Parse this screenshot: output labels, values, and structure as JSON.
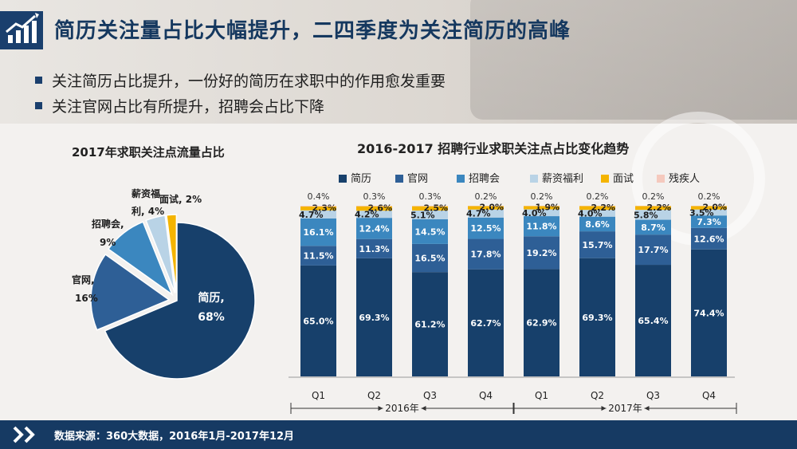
{
  "header": {
    "title": "简历关注量占比大幅提升，二四季度为关注简历的高峰",
    "bullets": [
      "关注简历占比提升，一份好的简历在求职中的作用愈发重要",
      "关注官网占比有所提升，招聘会占比下降"
    ]
  },
  "footer": {
    "source": "数据来源：360大数据，2016年1月-2017年12月"
  },
  "colors": {
    "navy": "#163a63",
    "jianli": "#17406b",
    "guanwang": "#2e5f96",
    "zhaopinhui": "#3b87bf",
    "xinzi": "#b9d3e6",
    "mianshi": "#f4b400",
    "canji": "#f5c9bd"
  },
  "chart_data": [
    {
      "type": "pie",
      "title": "2017年求职关注点流量占比",
      "slices": [
        {
          "label": "简历",
          "value": 68,
          "display": "68%",
          "color": "#17406b"
        },
        {
          "label": "官网",
          "value": 16,
          "display": "16%",
          "color": "#2e5f96"
        },
        {
          "label": "招聘会",
          "value": 9,
          "display": "9%",
          "color": "#3b87bf"
        },
        {
          "label": "薪资福利",
          "value": 4,
          "display": "4%",
          "color": "#b9d3e6"
        },
        {
          "label": "面试",
          "value": 2,
          "display": "2%",
          "color": "#f4b400"
        }
      ]
    },
    {
      "type": "bar",
      "stacked": true,
      "title": "2016-2017 招聘行业求职关注点占比变化趋势",
      "categories": [
        "Q1",
        "Q2",
        "Q3",
        "Q4",
        "Q1",
        "Q2",
        "Q3",
        "Q4"
      ],
      "groups": [
        {
          "label": "2016年",
          "span": [
            0,
            3
          ]
        },
        {
          "label": "2017年",
          "span": [
            4,
            7
          ]
        }
      ],
      "legend_position": "top",
      "series": [
        {
          "name": "简历",
          "color": "#17406b",
          "values": [
            65.0,
            69.3,
            61.2,
            62.7,
            62.9,
            69.3,
            65.4,
            74.4
          ]
        },
        {
          "name": "官网",
          "color": "#2e5f96",
          "values": [
            11.5,
            11.3,
            16.5,
            17.8,
            19.2,
            15.7,
            17.7,
            12.6
          ]
        },
        {
          "name": "招聘会",
          "color": "#3b87bf",
          "values": [
            16.1,
            12.4,
            14.5,
            12.5,
            11.8,
            8.6,
            8.7,
            7.3
          ]
        },
        {
          "name": "薪资福利",
          "color": "#b9d3e6",
          "values": [
            4.7,
            4.2,
            5.1,
            4.7,
            4.0,
            4.0,
            5.8,
            3.5
          ]
        },
        {
          "name": "面试",
          "color": "#f4b400",
          "values": [
            2.3,
            2.6,
            2.5,
            2.0,
            1.9,
            2.2,
            2.2,
            2.0
          ]
        },
        {
          "name": "残疾人",
          "color": "#f5c9bd",
          "values": [
            0.4,
            0.3,
            0.3,
            0.2,
            0.2,
            0.2,
            0.2,
            0.2
          ]
        }
      ]
    }
  ]
}
